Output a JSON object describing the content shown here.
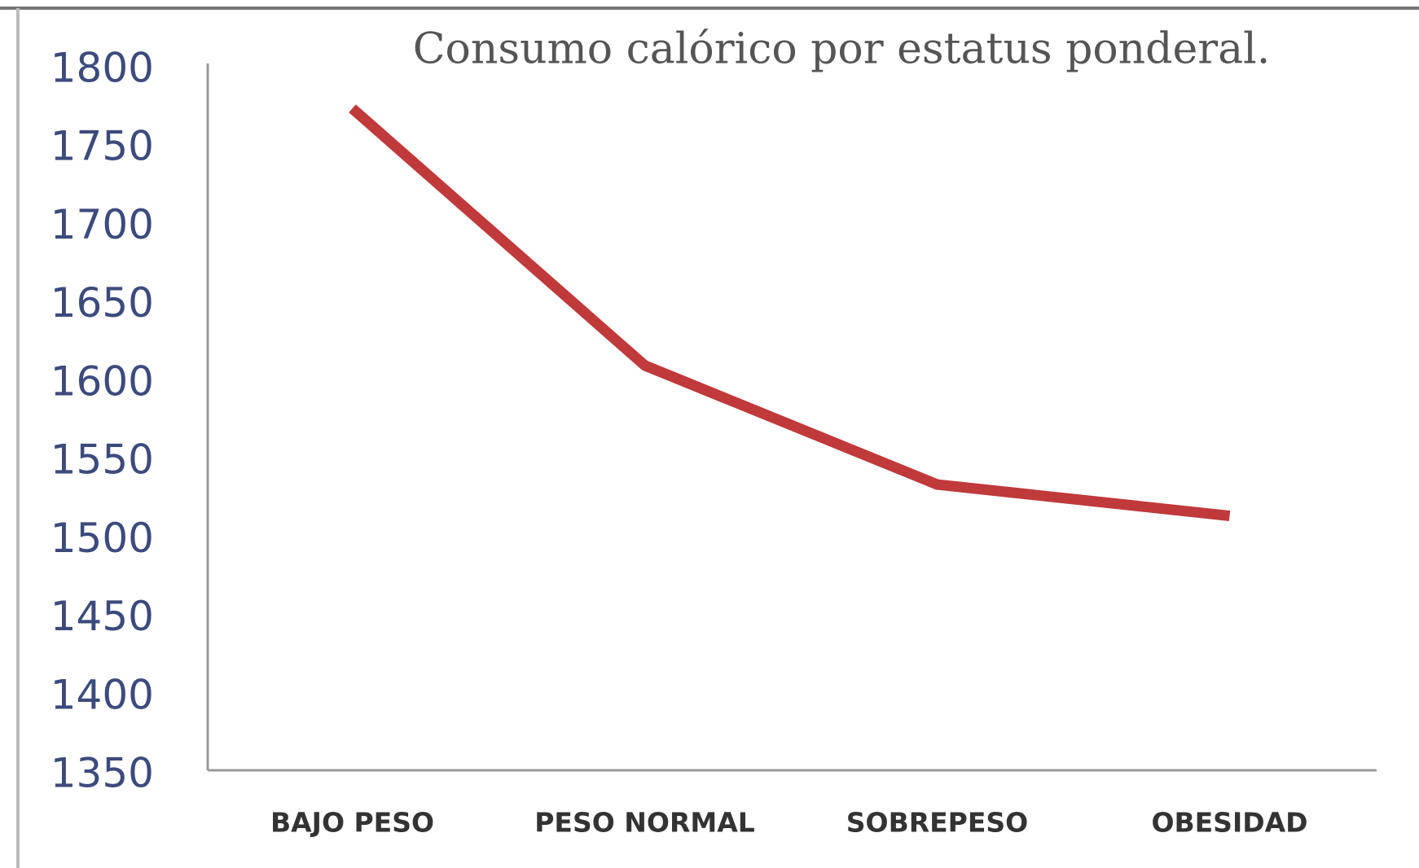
{
  "chart_data": {
    "type": "line",
    "title": "Consumo calórico por estatus ponderal.",
    "categories": [
      "BAJO PESO",
      "PESO NORMAL",
      "SOBREPESO",
      "OBESIDAD"
    ],
    "series": [
      {
        "name": "Consumo calórico",
        "color": "#c0393b",
        "values": [
          1776,
          1612,
          1536,
          1516
        ]
      }
    ],
    "ylim": [
      1350,
      1800
    ],
    "yticks": [
      1350,
      1400,
      1450,
      1500,
      1550,
      1600,
      1650,
      1700,
      1750,
      1800
    ],
    "grid": false,
    "legend": false
  }
}
